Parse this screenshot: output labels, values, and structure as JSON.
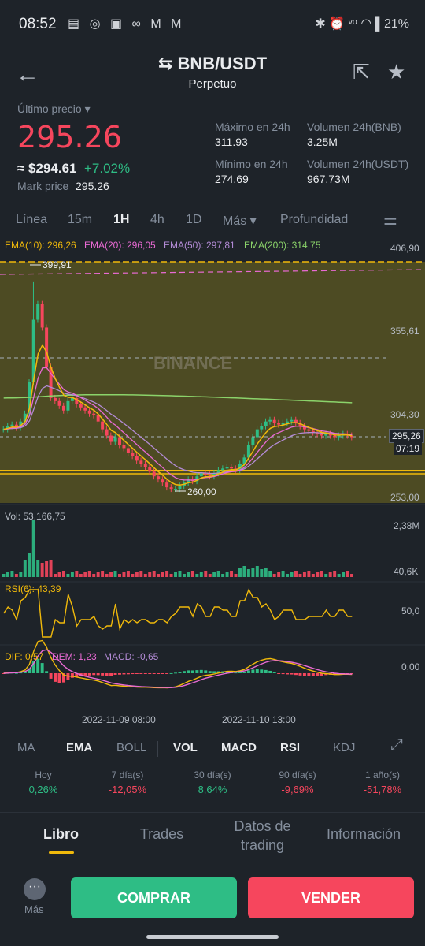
{
  "status": {
    "time": "08:52",
    "notif_icons": "▤ ◎ ▣ ∞ M M",
    "right": "✱ ⏰ ᵛᵒ ◠ ▌21%"
  },
  "header": {
    "pair": "BNB/USDT",
    "subtitle": "Perpetuo",
    "back_icon": "arrow-left-icon",
    "share_icon": "share-icon",
    "star_icon": "star-icon"
  },
  "ticker": {
    "last_label": "Último precio",
    "last_price": "295.26",
    "approx": "≈ $294.61",
    "change": "+7.02%",
    "mark_label": "Mark price",
    "mark_value": "295.26",
    "high_label": "Máximo en 24h",
    "high_value": "311.93",
    "low_label": "Mínimo en 24h",
    "low_value": "274.69",
    "vol_bnb_label": "Volumen 24h(BNB)",
    "vol_bnb_value": "3.25M",
    "vol_usdt_label": "Volumen 24h(USDT)",
    "vol_usdt_value": "967.73M"
  },
  "intervals": [
    "Línea",
    "15m",
    "1H",
    "4h",
    "1D",
    "Más ▾",
    "Profundidad"
  ],
  "active_interval": "1H",
  "chart": {
    "ema10": "EMA(10): 296,26",
    "ema20": "EMA(20): 296,05",
    "ema50": "EMA(50): 297,81",
    "ema200": "EMA(200): 314,75",
    "axis": [
      "406,90",
      "355,61",
      "304,30",
      "253,00"
    ],
    "high_mark": "399,91",
    "low_mark": "260,00",
    "cur_price": "295,26",
    "countdown": "07:19",
    "watermark": "BINANCE",
    "vol_label": "Vol: 53.166,75",
    "vol_axis_top": "2,38M",
    "vol_axis_bot": "40,6K",
    "rsi_label": "RSI(6): 43,39",
    "rsi_axis": "50,0",
    "dif": "DIF: 0,57",
    "dem": "DEM: 1,23",
    "macd": "MACD: -0,65",
    "macd_axis": "0,00",
    "date1": "2022-11-09 08:00",
    "date2": "2022-11-10 13:00",
    "colors": {
      "up": "#2ebd85",
      "down": "#f6465d",
      "ema10": "#f0b90b",
      "ema20": "#e96ad4",
      "ema50": "#9c7fd6",
      "ema200": "#8bd36a"
    }
  },
  "indicators": [
    "MA",
    "EMA",
    "BOLL",
    "VOL",
    "MACD",
    "RSI",
    "KDJ"
  ],
  "active_indicators": [
    "EMA",
    "VOL",
    "MACD",
    "RSI"
  ],
  "performance": [
    {
      "label": "Hoy",
      "value": "0,26%",
      "up": true
    },
    {
      "label": "7 día(s)",
      "value": "-12,05%",
      "up": false
    },
    {
      "label": "30 día(s)",
      "value": "8,64%",
      "up": true
    },
    {
      "label": "90 día(s)",
      "value": "-9,69%",
      "up": false
    },
    {
      "label": "1 año(s)",
      "value": "-51,78%",
      "up": false
    }
  ],
  "bottom_tabs": [
    "Libro",
    "Trades",
    "Datos de\ntrading",
    "Información"
  ],
  "actions": {
    "more": "Más",
    "buy": "COMPRAR",
    "sell": "VENDER"
  }
}
